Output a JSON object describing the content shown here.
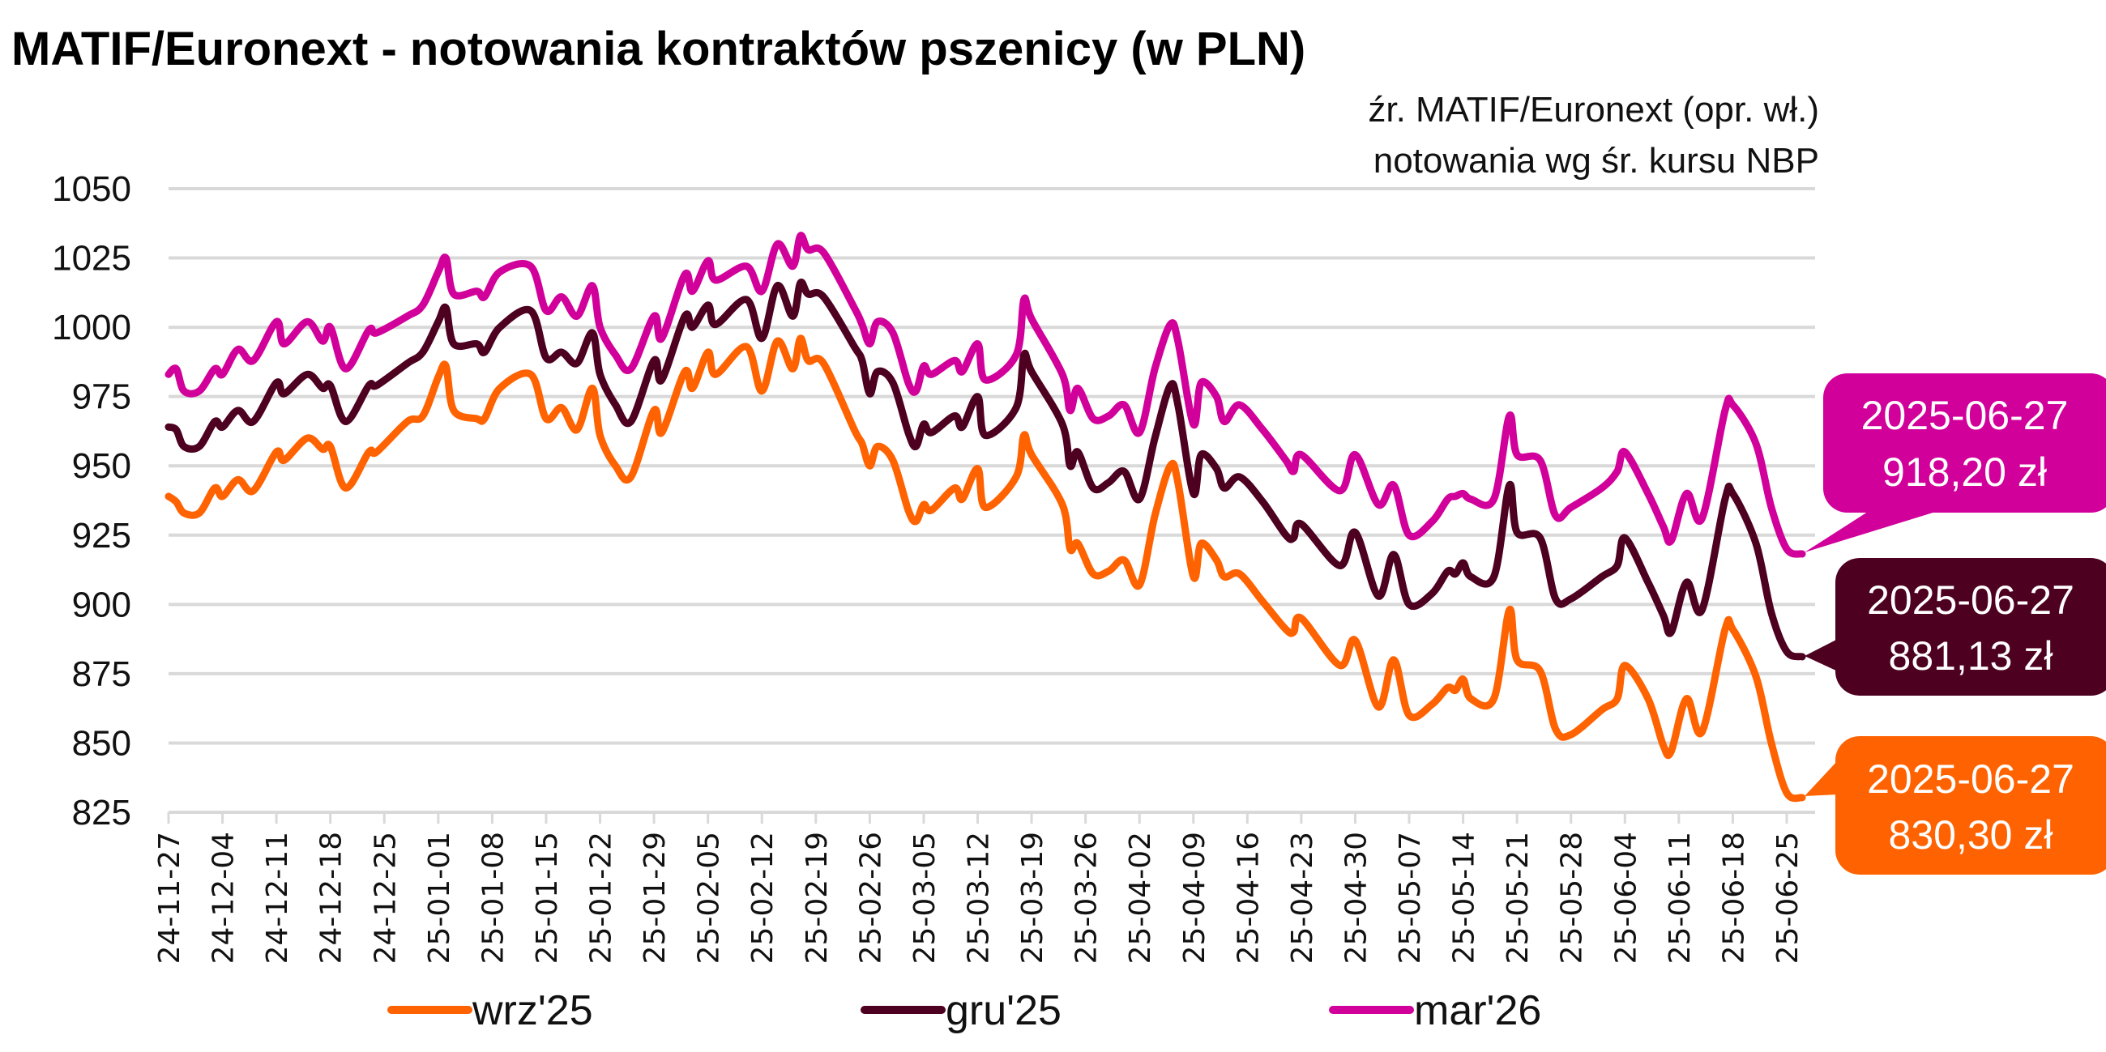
{
  "chart_data": {
    "type": "line",
    "title": "MATIF/Euronext - notowania kontraktów pszenicy (w PLN)",
    "source_lines": [
      "źr. MATIF/Euronext (opr. wł.)",
      "notowania wg śr. kursu NBP"
    ],
    "xlabel": "",
    "ylabel": "",
    "ylim": [
      825,
      1050
    ],
    "yticks": [
      825,
      850,
      875,
      900,
      925,
      950,
      975,
      1000,
      1025,
      1050
    ],
    "xticks": [
      "24-11-27",
      "24-12-04",
      "24-12-11",
      "24-12-18",
      "24-12-25",
      "25-01-01",
      "25-01-08",
      "25-01-15",
      "25-01-22",
      "25-01-29",
      "25-02-05",
      "25-02-12",
      "25-02-19",
      "25-02-26",
      "25-03-05",
      "25-03-12",
      "25-03-19",
      "25-03-26",
      "25-04-02",
      "25-04-09",
      "25-04-16",
      "25-04-23",
      "25-04-30",
      "25-05-07",
      "25-05-14",
      "25-05-21",
      "25-05-28",
      "25-06-04",
      "25-06-11",
      "25-06-18",
      "25-06-25"
    ],
    "grid": "horizontal",
    "legend_position": "bottom",
    "x": [
      "2024-11-27",
      "2024-11-28",
      "2024-11-29",
      "2024-12-01",
      "2024-12-03",
      "2024-12-04",
      "2024-12-06",
      "2024-12-08",
      "2024-12-11",
      "2024-12-12",
      "2024-12-15",
      "2024-12-17",
      "2024-12-18",
      "2024-12-20",
      "2024-12-23",
      "2024-12-24",
      "2024-12-28",
      "2024-12-30",
      "2025-01-01",
      "2025-01-02",
      "2025-01-03",
      "2025-01-06",
      "2025-01-07",
      "2025-01-09",
      "2025-01-13",
      "2025-01-15",
      "2025-01-17",
      "2025-01-19",
      "2025-01-21",
      "2025-01-22",
      "2025-01-24",
      "2025-01-26",
      "2025-01-29",
      "2025-01-30",
      "2025-02-02",
      "2025-02-03",
      "2025-02-05",
      "2025-02-06",
      "2025-02-10",
      "2025-02-12",
      "2025-02-14",
      "2025-02-16",
      "2025-02-17",
      "2025-02-18",
      "2025-02-20",
      "2025-02-24",
      "2025-02-25",
      "2025-02-26",
      "2025-02-27",
      "2025-03-01",
      "2025-03-03",
      "2025-03-04",
      "2025-03-05",
      "2025-03-06",
      "2025-03-09",
      "2025-03-10",
      "2025-03-12",
      "2025-03-13",
      "2025-03-17",
      "2025-03-18",
      "2025-03-19",
      "2025-03-23",
      "2025-03-24",
      "2025-03-25",
      "2025-03-27",
      "2025-03-29",
      "2025-03-31",
      "2025-04-02",
      "2025-04-04",
      "2025-04-06",
      "2025-04-07",
      "2025-04-09",
      "2025-04-10",
      "2025-04-12",
      "2025-04-13",
      "2025-04-15",
      "2025-04-18",
      "2025-04-21",
      "2025-04-22",
      "2025-04-23",
      "2025-04-28",
      "2025-04-30",
      "2025-05-03",
      "2025-05-05",
      "2025-05-07",
      "2025-05-10",
      "2025-05-12",
      "2025-05-13",
      "2025-05-14",
      "2025-05-15",
      "2025-05-18",
      "2025-05-20",
      "2025-05-21",
      "2025-05-24",
      "2025-05-26",
      "2025-05-28",
      "2025-06-01",
      "2025-06-03",
      "2025-06-04",
      "2025-06-07",
      "2025-06-09",
      "2025-06-10",
      "2025-06-12",
      "2025-06-14",
      "2025-06-17",
      "2025-06-18",
      "2025-06-21",
      "2025-06-23",
      "2025-06-25",
      "2025-06-27"
    ],
    "series": [
      {
        "name": "wrz'25",
        "color": "#FF6200",
        "values": [
          939,
          937,
          933,
          933,
          942,
          939,
          945,
          941,
          955,
          952,
          960,
          956,
          957,
          942,
          955,
          955,
          966,
          968,
          982,
          986,
          970,
          967,
          967,
          978,
          983,
          967,
          971,
          963,
          978,
          961,
          950,
          946,
          970,
          962,
          984,
          978,
          991,
          983,
          993,
          977,
          995,
          985,
          996,
          988,
          987,
          963,
          958,
          950,
          957,
          952,
          934,
          930,
          936,
          934,
          942,
          938,
          949,
          935,
          946,
          961,
          954,
          936,
          920,
          922,
          911,
          912,
          916,
          907,
          932,
          950,
          944,
          910,
          922,
          916,
          910,
          911,
          901,
          891,
          890,
          895,
          878,
          887,
          863,
          880,
          860,
          864,
          870,
          869,
          873,
          866,
          866,
          898,
          880,
          876,
          855,
          853,
          862,
          866,
          878,
          866,
          849,
          847,
          866,
          854,
          891,
          891,
          874,
          850,
          832,
          830.3
        ]
      },
      {
        "name": "gru'25",
        "color": "#4D0020",
        "values": [
          964,
          963,
          957,
          957,
          966,
          964,
          970,
          966,
          980,
          976,
          983,
          978,
          979,
          966,
          979,
          979,
          987,
          991,
          1002,
          1007,
          994,
          994,
          991,
          1000,
          1006,
          989,
          991,
          987,
          998,
          983,
          972,
          966,
          988,
          981,
          1004,
          1000,
          1008,
          1001,
          1010,
          996,
          1015,
          1004,
          1016,
          1012,
          1011,
          993,
          988,
          976,
          984,
          980,
          962,
          957,
          965,
          962,
          968,
          964,
          975,
          961,
          971,
          990,
          984,
          965,
          950,
          955,
          942,
          944,
          948,
          938,
          960,
          979,
          972,
          940,
          954,
          949,
          942,
          946,
          937,
          925,
          924,
          929,
          914,
          926,
          903,
          918,
          900,
          904,
          912,
          911,
          915,
          910,
          910,
          943,
          926,
          924,
          902,
          902,
          910,
          914,
          924,
          908,
          896,
          890,
          908,
          898,
          938,
          940,
          922,
          897,
          883,
          881.13
        ]
      },
      {
        "name": "mar'26",
        "color": "#D2009A",
        "values": [
          983,
          985,
          977,
          977,
          985,
          983,
          992,
          988,
          1002,
          994,
          1002,
          995,
          1000,
          985,
          999,
          998,
          1004,
          1008,
          1020,
          1025,
          1012,
          1013,
          1011,
          1020,
          1022,
          1006,
          1011,
          1004,
          1015,
          1000,
          990,
          985,
          1004,
          996,
          1019,
          1013,
          1024,
          1017,
          1022,
          1013,
          1030,
          1022,
          1033,
          1028,
          1027,
          1007,
          1001,
          994,
          1002,
          998,
          980,
          977,
          986,
          983,
          988,
          984,
          994,
          981,
          990,
          1010,
          1003,
          983,
          970,
          978,
          967,
          968,
          972,
          962,
          985,
          1001,
          995,
          965,
          980,
          975,
          966,
          972,
          963,
          952,
          948,
          954,
          941,
          954,
          936,
          943,
          925,
          930,
          938,
          939,
          940,
          938,
          938,
          968,
          954,
          952,
          932,
          935,
          942,
          948,
          955,
          940,
          928,
          923,
          940,
          931,
          970,
          972,
          958,
          935,
          920,
          918.2
        ]
      }
    ],
    "annotations": [
      {
        "series": "mar'26",
        "date_label": "2025-06-27",
        "value_label": "918,20 zł"
      },
      {
        "series": "gru'25",
        "date_label": "2025-06-27",
        "value_label": "881,13 zł"
      },
      {
        "series": "wrz'25",
        "date_label": "2025-06-27",
        "value_label": "830,30 zł"
      }
    ]
  }
}
